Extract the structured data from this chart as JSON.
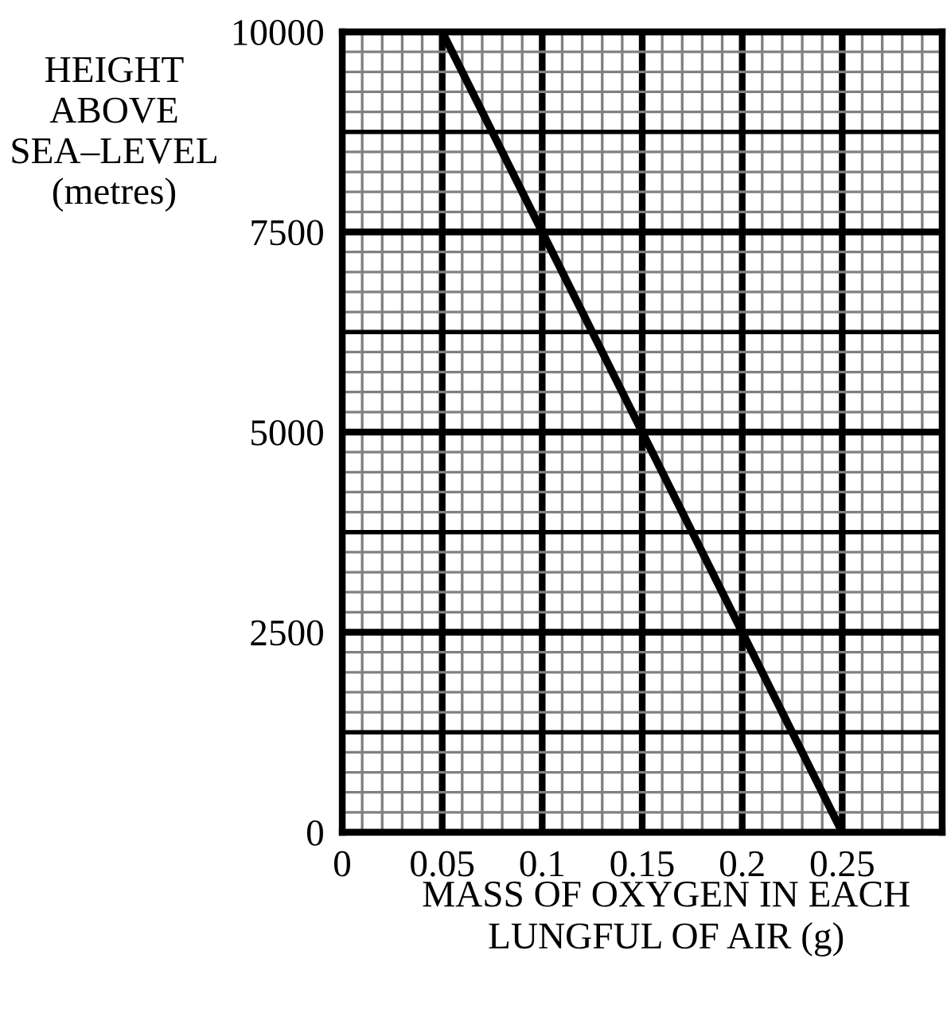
{
  "chart_data": {
    "type": "line",
    "xlabel": "MASS OF OXYGEN IN EACH\nLUNGFUL OF AIR (g)",
    "ylabel": "HEIGHT\nABOVE\nSEA–LEVEL\n(metres)",
    "series": [
      {
        "color": "#000000",
        "x": [
          0.05,
          0.1,
          0.15,
          0.2,
          0.25
        ],
        "values": [
          10000,
          7500,
          5000,
          2500,
          0
        ]
      }
    ],
    "xlim": [
      0,
      0.3
    ],
    "ylim": [
      0,
      10000
    ],
    "xticks": [
      0,
      0.05,
      0.1,
      0.15,
      0.2,
      0.25,
      {
        "value": 0.3,
        "label": null
      }
    ],
    "yticks": [
      0,
      2500,
      5000,
      7500,
      10000
    ],
    "grid": true,
    "marker": "none",
    "line_style": "solid"
  }
}
